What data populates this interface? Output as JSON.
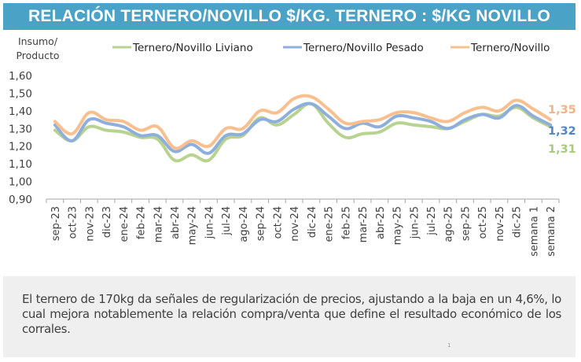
{
  "title": "RELACIÓN TERNERO/NOVILLO $/KG. TERNERO : $/KG NOVILLO",
  "chart_data": {
    "type": "line",
    "title": "RELACIÓN TERNERO/NOVILLO $/KG. TERNERO : $/KG NOVILLO",
    "ylabel": "Insumo/ Producto",
    "ylabel_lines": [
      "Insumo/",
      "Producto"
    ],
    "xlabel": "",
    "ylim": [
      0.9,
      1.6
    ],
    "yticks": [
      "1,60",
      "1,50",
      "1,40",
      "1,30",
      "1,20",
      "1,10",
      "1,00",
      "0,90"
    ],
    "ytick_values": [
      1.6,
      1.5,
      1.4,
      1.3,
      1.2,
      1.1,
      1.0,
      0.9
    ],
    "grid": false,
    "legend_position": "top",
    "categories": [
      "sep-23",
      "oct-23",
      "nov-23",
      "dic-23",
      "ene-24",
      "feb-24",
      "mar-24",
      "abr-24",
      "may-24",
      "jun-24",
      "jul-24",
      "ago-24",
      "sep-24",
      "oct-24",
      "nov-24",
      "dic-24",
      "ene-25",
      "feb-25",
      "mar-25",
      "abr-25",
      "may-25",
      "jun-25",
      "jul-25",
      "ago-25",
      "sep-25",
      "oct-25",
      "nov-25",
      "dic-25",
      "semana 1",
      "semana 2"
    ],
    "series": [
      {
        "name": "Ternero/Novillo Liviano",
        "color": "#b7d38f",
        "label_color": "#a9c97e",
        "end_label": "1,31",
        "values": [
          1.29,
          1.23,
          1.31,
          1.29,
          1.28,
          1.25,
          1.24,
          1.12,
          1.15,
          1.12,
          1.24,
          1.26,
          1.36,
          1.32,
          1.38,
          1.44,
          1.33,
          1.25,
          1.27,
          1.28,
          1.33,
          1.32,
          1.31,
          1.3,
          1.34,
          1.38,
          1.37,
          1.42,
          1.36,
          1.31
        ]
      },
      {
        "name": "Ternero/Novillo Pesado",
        "color": "#8eafdc",
        "label_color": "#4f86c6",
        "end_label": "1,32",
        "values": [
          1.32,
          1.23,
          1.35,
          1.33,
          1.31,
          1.26,
          1.26,
          1.17,
          1.21,
          1.16,
          1.26,
          1.27,
          1.35,
          1.34,
          1.41,
          1.44,
          1.37,
          1.3,
          1.33,
          1.31,
          1.37,
          1.36,
          1.34,
          1.3,
          1.35,
          1.38,
          1.36,
          1.43,
          1.37,
          1.32
        ]
      },
      {
        "name": "Ternero/Novillo",
        "color": "#f9bf8f",
        "label_color": "#f4b183",
        "end_label": "1,35",
        "values": [
          1.34,
          1.27,
          1.39,
          1.35,
          1.34,
          1.29,
          1.31,
          1.19,
          1.23,
          1.2,
          1.3,
          1.3,
          1.4,
          1.39,
          1.47,
          1.48,
          1.41,
          1.33,
          1.34,
          1.35,
          1.39,
          1.39,
          1.36,
          1.34,
          1.39,
          1.42,
          1.4,
          1.46,
          1.41,
          1.35
        ]
      }
    ]
  },
  "note": {
    "text": "El ternero de 170kg da señales de regularización de precios, ajustando a la baja en un 4,6%, lo cual mejora notablemente la relación compra/venta que define el resultado económico de los corrales.",
    "page_number": "1"
  }
}
